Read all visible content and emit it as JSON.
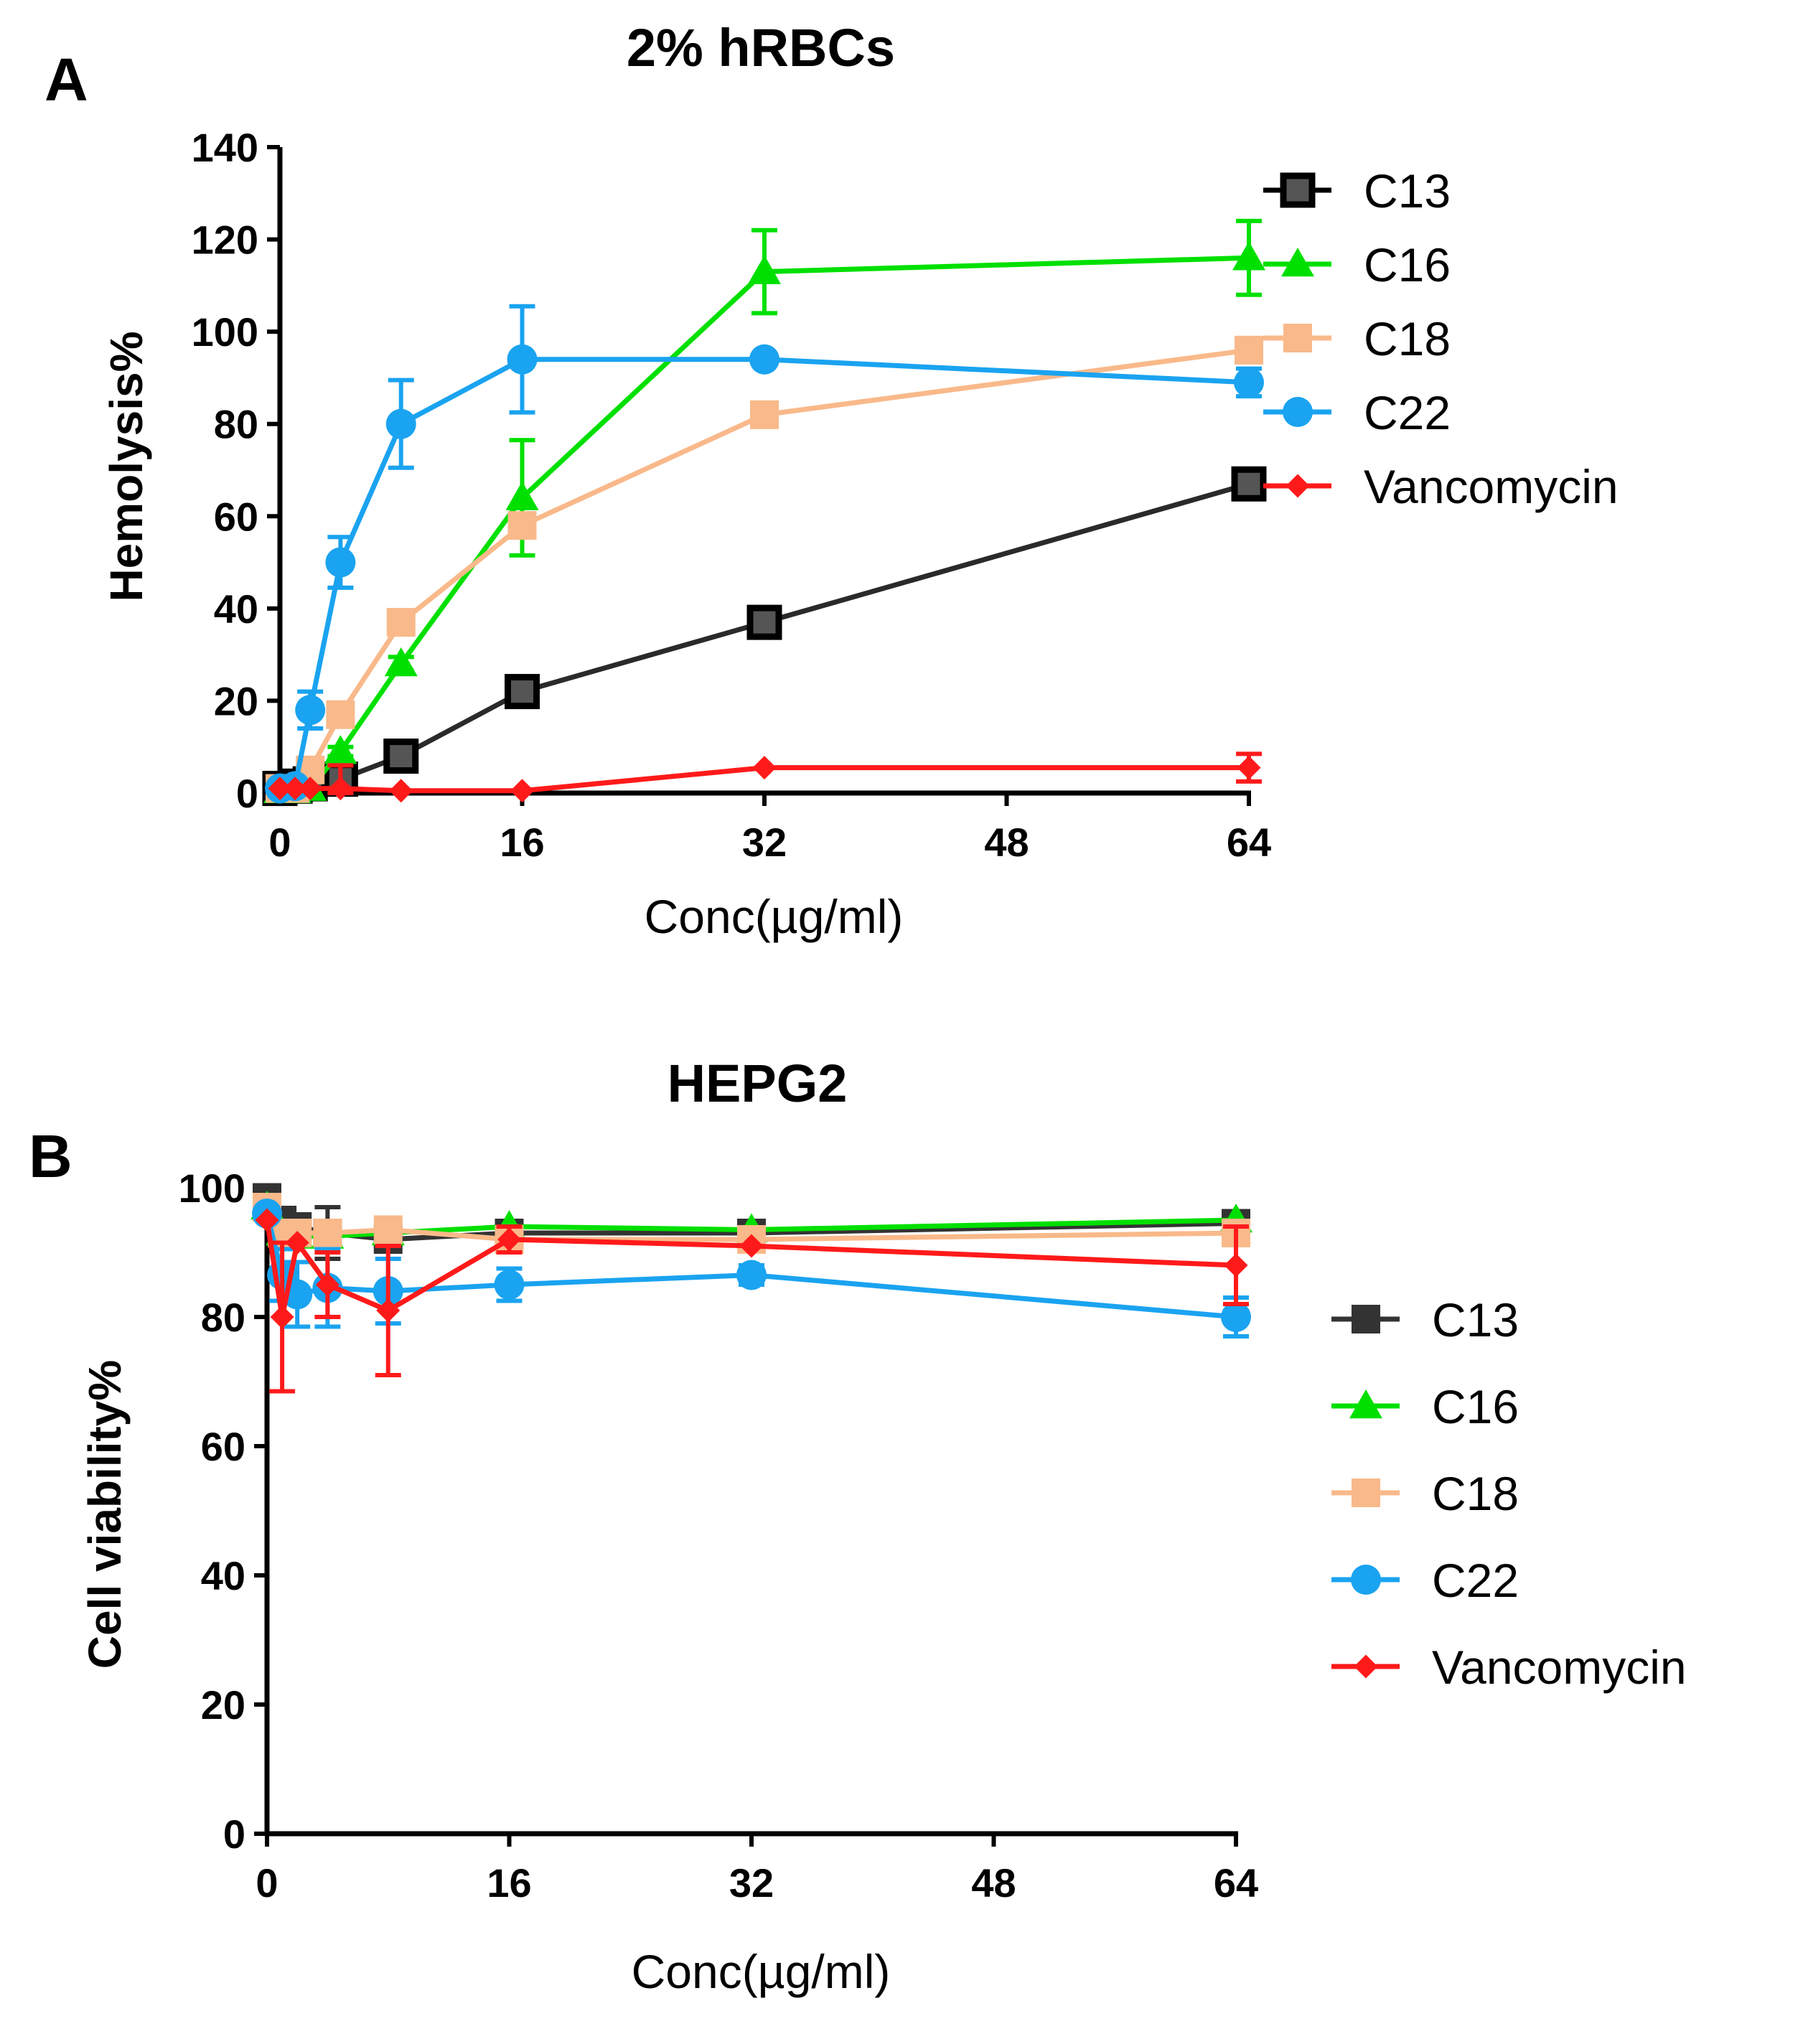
{
  "chart_data": [
    {
      "panel": "A",
      "type": "line",
      "title": "2% hRBCs",
      "xlabel": "Conc(µg/ml)",
      "ylabel": "Hemolysis%",
      "xlim": [
        0,
        64
      ],
      "ylim": [
        0,
        140
      ],
      "xticks": [
        "0",
        "16",
        "32",
        "48",
        "64"
      ],
      "yticks": [
        "0",
        "20",
        "40",
        "60",
        "80",
        "100",
        "120",
        "140"
      ],
      "x": [
        0,
        1,
        2,
        4,
        8,
        16,
        32,
        64
      ],
      "series": [
        {
          "name": "C13",
          "color": "#2a2a2a",
          "marker": "square-open",
          "values": [
            1,
            1.5,
            2,
            3,
            8,
            22,
            37,
            67
          ],
          "errors": [
            0,
            0,
            0,
            1,
            1,
            1.5,
            2,
            2
          ]
        },
        {
          "name": "C16",
          "color": "#00e000",
          "marker": "triangle",
          "values": [
            0.5,
            0.5,
            1,
            9,
            28,
            64,
            113,
            116
          ],
          "errors": [
            0,
            0,
            0,
            1,
            1.5,
            12.5,
            9,
            8
          ]
        },
        {
          "name": "C18",
          "color": "#f9b98a",
          "marker": "square",
          "values": [
            1,
            1,
            5,
            17,
            37,
            58,
            82,
            96
          ],
          "errors": [
            0,
            0,
            0,
            1,
            1.5,
            2,
            2,
            2
          ]
        },
        {
          "name": "C22",
          "color": "#1aa3f0",
          "marker": "circle",
          "values": [
            1,
            1.5,
            18,
            50,
            80,
            94,
            94,
            89
          ],
          "errors": [
            0,
            0,
            4,
            5.5,
            9.5,
            11.5,
            1,
            3
          ]
        },
        {
          "name": "Vancomycin",
          "color": "#ff1a1a",
          "marker": "diamond",
          "values": [
            1,
            1,
            1,
            1,
            0.5,
            0.5,
            5.5,
            5.5
          ],
          "errors": [
            0,
            0,
            0,
            5,
            0,
            0,
            0,
            3
          ]
        }
      ],
      "legend": "right"
    },
    {
      "panel": "B",
      "type": "line",
      "title": "HEPG2",
      "xlabel": "Conc(µg/ml)",
      "ylabel": "Cell viability%",
      "xlim": [
        0,
        64
      ],
      "ylim": [
        0,
        100
      ],
      "xticks": [
        "0",
        "16",
        "32",
        "48",
        "64"
      ],
      "yticks": [
        "0",
        "20",
        "40",
        "60",
        "80",
        "100"
      ],
      "x": [
        0,
        1,
        2,
        4,
        8,
        16,
        32,
        64
      ],
      "series": [
        {
          "name": "C13",
          "color": "#333333",
          "marker": "square",
          "values": [
            98.5,
            95,
            94,
            93,
            92,
            93,
            93,
            94.5
          ],
          "errors": [
            0,
            0,
            0,
            4,
            0,
            0,
            0,
            0
          ]
        },
        {
          "name": "C16",
          "color": "#00e000",
          "marker": "triangle",
          "values": [
            97,
            93,
            92.5,
            92.5,
            93,
            94,
            93.5,
            95
          ],
          "errors": [
            0,
            0,
            0,
            0,
            0,
            0,
            0,
            0
          ]
        },
        {
          "name": "C18",
          "color": "#f9b98a",
          "marker": "square",
          "values": [
            97,
            93,
            93,
            93,
            93.5,
            92,
            92,
            93
          ],
          "errors": [
            0,
            0,
            0,
            0,
            0,
            0,
            0,
            0
          ]
        },
        {
          "name": "C22",
          "color": "#1aa3f0",
          "marker": "circle",
          "values": [
            96,
            86.5,
            83.5,
            84.5,
            84,
            85,
            86.5,
            80
          ],
          "errors": [
            0,
            4,
            5,
            6,
            5,
            2.5,
            1.5,
            3
          ]
        },
        {
          "name": "Vancomycin",
          "color": "#ff1a1a",
          "marker": "diamond",
          "values": [
            95,
            80,
            91.5,
            85,
            81,
            92,
            91,
            88
          ],
          "errors": [
            0,
            11.5,
            0,
            5,
            10,
            2,
            0,
            6
          ]
        }
      ],
      "legend": "right"
    }
  ]
}
